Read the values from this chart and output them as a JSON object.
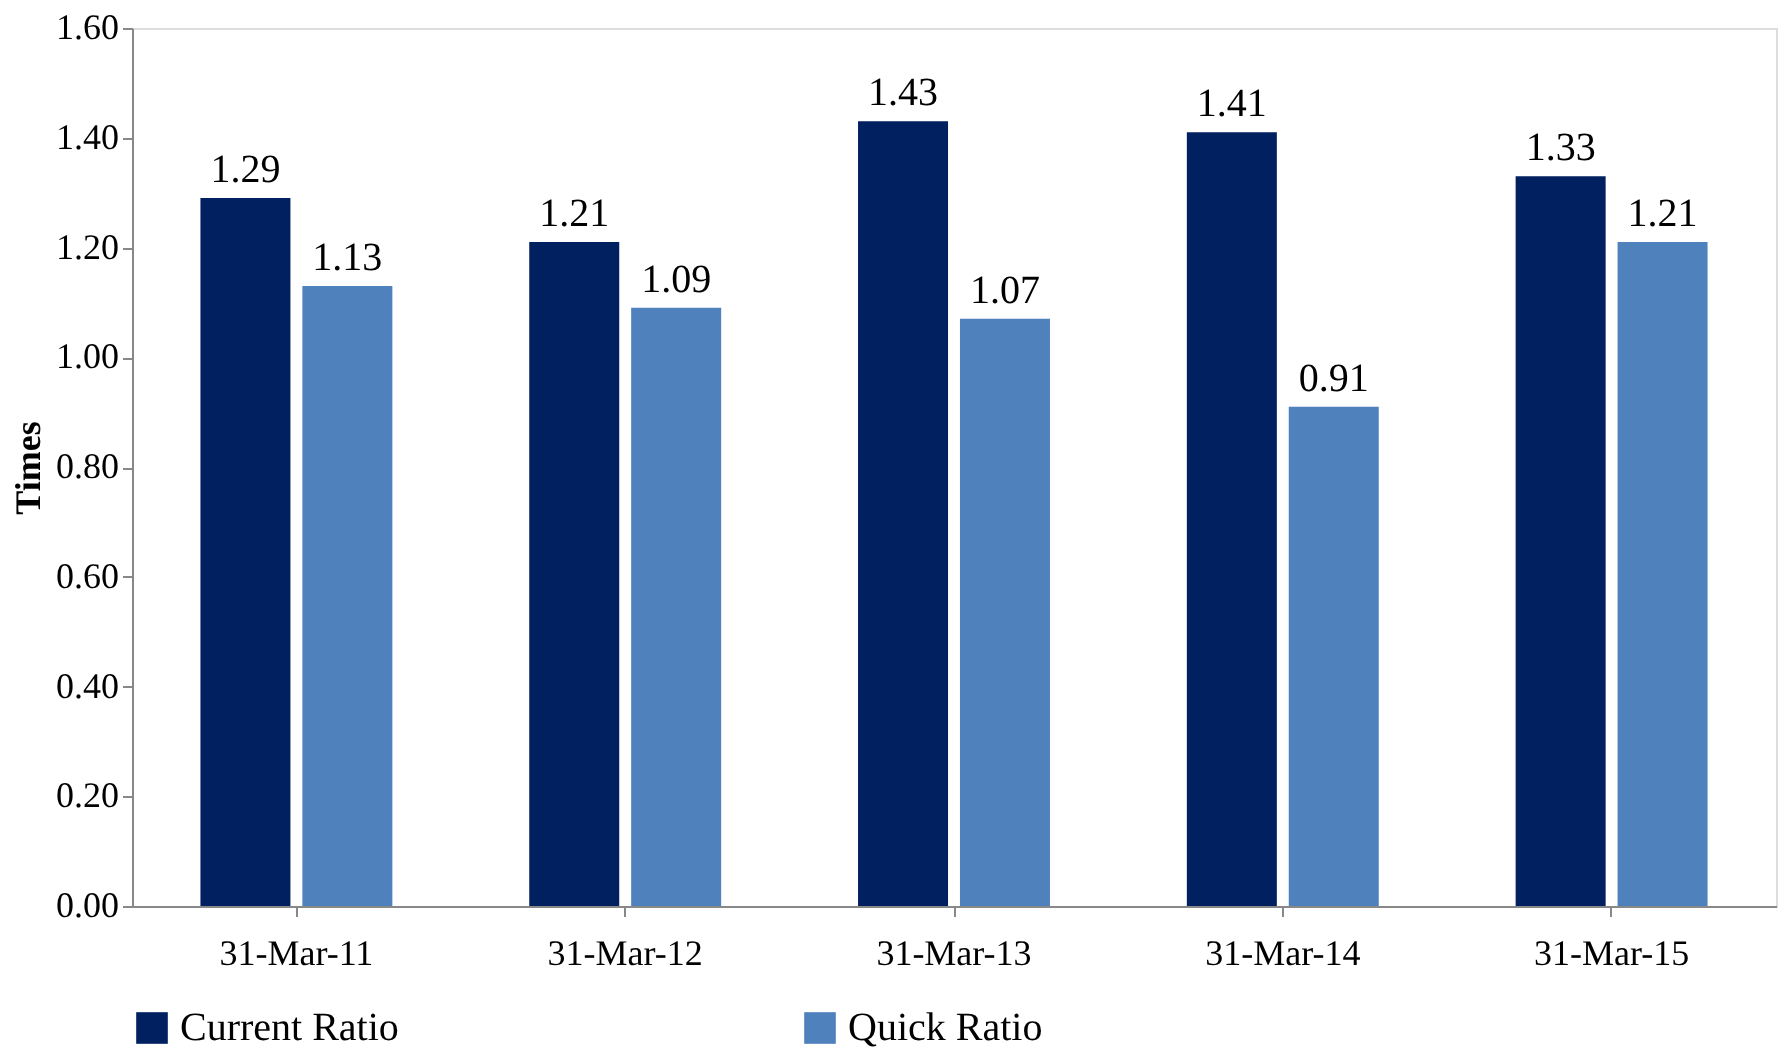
{
  "chart_data": {
    "type": "bar",
    "ylabel": "Times",
    "categories": [
      "31-Mar-11",
      "31-Mar-12",
      "31-Mar-13",
      "31-Mar-14",
      "31-Mar-15"
    ],
    "series": [
      {
        "name": "Current Ratio",
        "color": "#002060",
        "values": [
          1.29,
          1.21,
          1.43,
          1.41,
          1.33
        ]
      },
      {
        "name": "Quick Ratio",
        "color": "#4f81bd",
        "values": [
          1.13,
          1.09,
          1.07,
          0.91,
          1.21
        ]
      }
    ],
    "ylim": [
      0,
      1.6
    ],
    "yticks": [
      {
        "value": 0,
        "label": "0.00"
      },
      {
        "value": 0.2,
        "label": "0.20"
      },
      {
        "value": 0.4,
        "label": "0.40"
      },
      {
        "value": 0.6,
        "label": "0.60"
      },
      {
        "value": 0.8,
        "label": "0.80"
      },
      {
        "value": 1.0,
        "label": "1.00"
      },
      {
        "value": 1.2,
        "label": "1.20"
      },
      {
        "value": 1.4,
        "label": "1.40"
      },
      {
        "value": 1.6,
        "label": "1.60"
      }
    ],
    "grid": false,
    "legend": "bottom",
    "data_labels": true
  }
}
